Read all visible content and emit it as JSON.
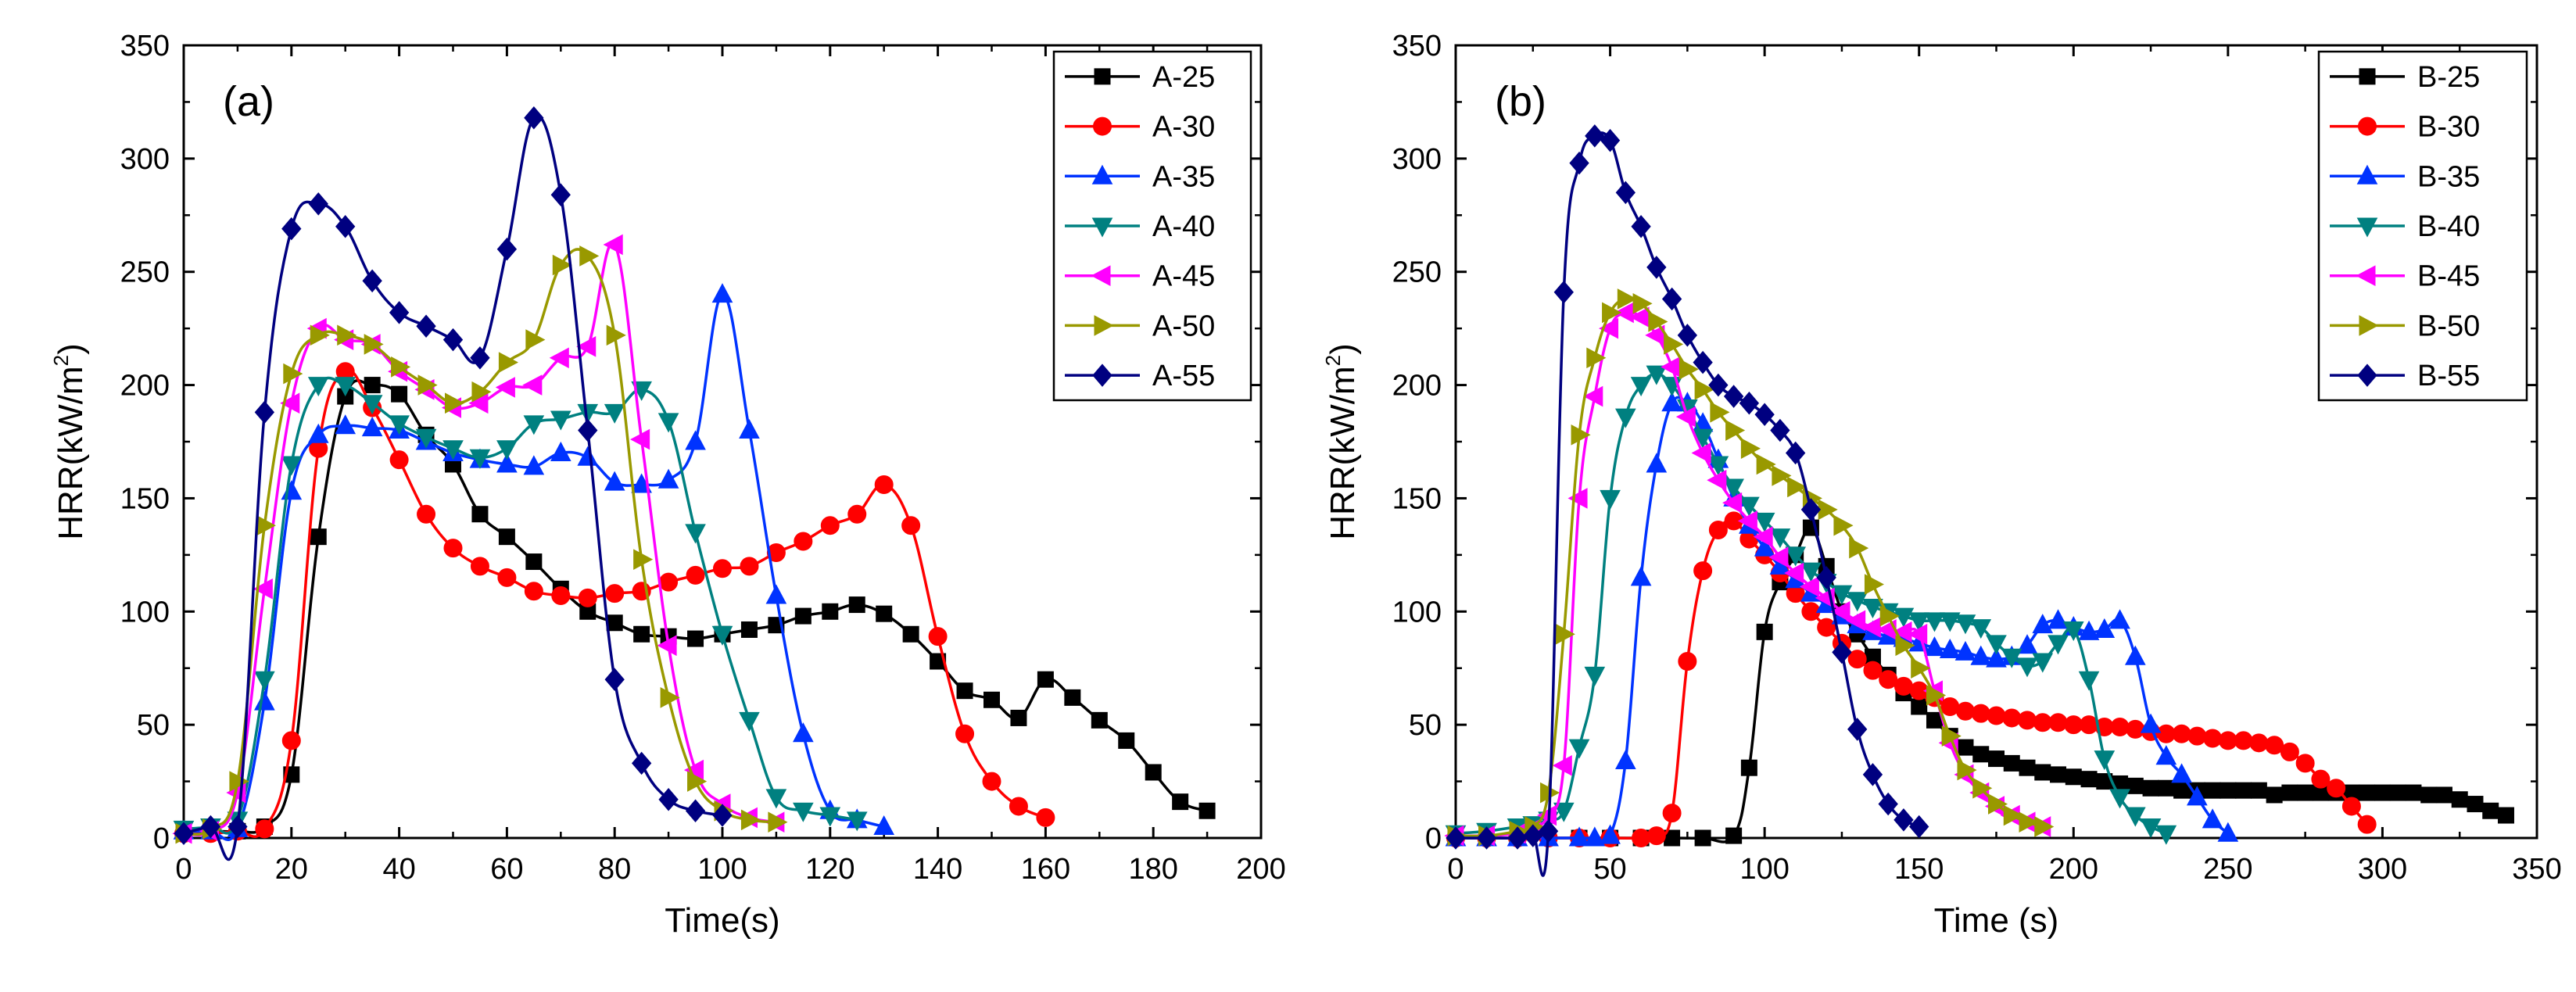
{
  "chart_data": [
    {
      "type": "line",
      "panel_label": "(a)",
      "xlabel": "Time(s)",
      "ylabel_pre": "HRR(kW/m",
      "ylabel_sup": "2",
      "ylabel_post": ")",
      "xlim": [
        0,
        200
      ],
      "ylim": [
        0,
        350
      ],
      "xticks": [
        0,
        20,
        40,
        60,
        80,
        100,
        120,
        140,
        160,
        180,
        200
      ],
      "yticks": [
        0,
        50,
        100,
        150,
        200,
        250,
        300,
        350
      ],
      "legend_position": "top-right",
      "series": [
        {
          "name": "A-25",
          "color": "#000000",
          "marker": "square",
          "x": [
            0,
            5,
            10,
            15,
            20,
            25,
            30,
            35,
            40,
            45,
            50,
            55,
            60,
            65,
            70,
            75,
            80,
            85,
            90,
            95,
            100,
            105,
            110,
            115,
            120,
            125,
            130,
            135,
            140,
            145,
            150,
            155,
            160,
            165,
            170,
            175,
            180,
            185,
            190
          ],
          "y": [
            3,
            3,
            3,
            5,
            28,
            133,
            195,
            200,
            196,
            178,
            165,
            143,
            133,
            122,
            110,
            100,
            95,
            90,
            89,
            88,
            90,
            92,
            94,
            98,
            100,
            103,
            99,
            90,
            78,
            65,
            61,
            53,
            70,
            62,
            52,
            43,
            29,
            16,
            12
          ]
        },
        {
          "name": "A-30",
          "color": "#ff0000",
          "marker": "circle",
          "x": [
            0,
            5,
            10,
            15,
            20,
            25,
            30,
            35,
            40,
            45,
            50,
            55,
            60,
            65,
            70,
            75,
            80,
            85,
            90,
            95,
            100,
            105,
            110,
            115,
            120,
            125,
            130,
            135,
            140,
            145,
            150,
            155,
            160
          ],
          "y": [
            2,
            2,
            3,
            4,
            43,
            172,
            206,
            190,
            167,
            143,
            128,
            120,
            115,
            109,
            107,
            106,
            108,
            109,
            113,
            116,
            119,
            120,
            126,
            131,
            138,
            143,
            156,
            138,
            89,
            46,
            25,
            14,
            9
          ]
        },
        {
          "name": "A-35",
          "color": "#0033ff",
          "marker": "triangle-up",
          "x": [
            0,
            5,
            10,
            15,
            20,
            25,
            30,
            35,
            40,
            45,
            50,
            55,
            60,
            65,
            70,
            75,
            80,
            85,
            90,
            95,
            100,
            105,
            110,
            115,
            120,
            125,
            130
          ],
          "y": [
            3,
            3,
            4,
            60,
            153,
            178,
            182,
            181,
            180,
            175,
            170,
            167,
            165,
            164,
            170,
            168,
            157,
            156,
            158,
            175,
            240,
            180,
            107,
            46,
            12,
            8,
            5
          ]
        },
        {
          "name": "A-40",
          "color": "#008080",
          "marker": "triangle-down",
          "x": [
            0,
            5,
            10,
            15,
            20,
            25,
            30,
            35,
            40,
            45,
            50,
            55,
            60,
            65,
            70,
            75,
            80,
            85,
            90,
            95,
            100,
            105,
            110,
            115,
            120,
            125
          ],
          "y": [
            4,
            5,
            8,
            70,
            165,
            200,
            200,
            192,
            183,
            177,
            172,
            168,
            172,
            183,
            185,
            188,
            188,
            198,
            184,
            135,
            90,
            52,
            18,
            12,
            10,
            8
          ]
        },
        {
          "name": "A-45",
          "color": "#ff00ff",
          "marker": "triangle-left",
          "x": [
            0,
            5,
            10,
            15,
            20,
            25,
            30,
            35,
            40,
            45,
            50,
            55,
            60,
            65,
            70,
            75,
            80,
            85,
            90,
            95,
            100,
            105,
            110
          ],
          "y": [
            2,
            3,
            20,
            110,
            192,
            225,
            220,
            218,
            206,
            198,
            190,
            192,
            199,
            200,
            212,
            217,
            262,
            176,
            85,
            30,
            15,
            9,
            7
          ]
        },
        {
          "name": "A-50",
          "color": "#999900",
          "marker": "triangle-right",
          "x": [
            0,
            5,
            10,
            15,
            20,
            25,
            30,
            35,
            40,
            45,
            50,
            55,
            60,
            65,
            70,
            75,
            80,
            85,
            90,
            95,
            100,
            105,
            110
          ],
          "y": [
            2,
            4,
            25,
            138,
            205,
            222,
            222,
            218,
            208,
            200,
            192,
            197,
            210,
            220,
            253,
            257,
            222,
            123,
            62,
            25,
            12,
            8,
            7
          ]
        },
        {
          "name": "A-55",
          "color": "#000080",
          "marker": "diamond",
          "x": [
            0,
            5,
            10,
            15,
            20,
            25,
            30,
            35,
            40,
            45,
            50,
            55,
            60,
            65,
            70,
            75,
            80,
            85,
            90,
            95,
            100
          ],
          "y": [
            2,
            5,
            5,
            188,
            269,
            280,
            270,
            246,
            232,
            226,
            220,
            212,
            260,
            318,
            284,
            180,
            70,
            33,
            17,
            12,
            10
          ]
        }
      ]
    },
    {
      "type": "line",
      "panel_label": "(b)",
      "xlabel": "Time (s)",
      "ylabel_pre": "HRR(kW/m",
      "ylabel_sup": "2",
      "ylabel_post": ")",
      "xlim": [
        0,
        350
      ],
      "ylim": [
        0,
        350
      ],
      "xticks": [
        0,
        50,
        100,
        150,
        200,
        250,
        300,
        350
      ],
      "yticks": [
        0,
        50,
        100,
        150,
        200,
        250,
        300,
        350
      ],
      "legend_position": "top-right",
      "series": [
        {
          "name": "B-25",
          "color": "#000000",
          "marker": "square",
          "x": [
            0,
            10,
            20,
            30,
            40,
            50,
            60,
            70,
            80,
            90,
            95,
            100,
            105,
            110,
            115,
            120,
            125,
            130,
            135,
            140,
            145,
            150,
            155,
            160,
            165,
            170,
            175,
            180,
            185,
            190,
            195,
            200,
            205,
            210,
            215,
            220,
            225,
            230,
            235,
            240,
            245,
            250,
            255,
            260,
            265,
            270,
            275,
            280,
            285,
            290,
            295,
            300,
            305,
            310,
            315,
            320,
            325,
            330,
            335,
            340
          ],
          "y": [
            0,
            0,
            0,
            0,
            0,
            0,
            0,
            0,
            0,
            1,
            31,
            91,
            113,
            125,
            137,
            120,
            100,
            90,
            80,
            72,
            64,
            58,
            52,
            45,
            40,
            37,
            35,
            33,
            31,
            29,
            28,
            27,
            26,
            25,
            24,
            23,
            22,
            22,
            21,
            21,
            21,
            21,
            21,
            21,
            19,
            20,
            20,
            20,
            20,
            20,
            20,
            20,
            20,
            20,
            19,
            19,
            17,
            15,
            12,
            10
          ]
        },
        {
          "name": "B-30",
          "color": "#ff0000",
          "marker": "circle",
          "x": [
            0,
            10,
            20,
            30,
            40,
            50,
            60,
            65,
            70,
            75,
            80,
            85,
            90,
            95,
            100,
            105,
            110,
            115,
            120,
            125,
            130,
            135,
            140,
            145,
            150,
            155,
            160,
            165,
            170,
            175,
            180,
            185,
            190,
            195,
            200,
            205,
            210,
            215,
            220,
            225,
            230,
            235,
            240,
            245,
            250,
            255,
            260,
            265,
            270,
            275,
            280,
            285,
            290,
            295
          ],
          "y": [
            0,
            0,
            0,
            0,
            0,
            0,
            0,
            1,
            11,
            78,
            118,
            136,
            140,
            132,
            125,
            117,
            108,
            100,
            93,
            86,
            79,
            74,
            70,
            67,
            65,
            62,
            58,
            56,
            55,
            54,
            53,
            52,
            51,
            51,
            50,
            50,
            49,
            49,
            48,
            47,
            46,
            46,
            45,
            44,
            43,
            43,
            42,
            41,
            38,
            33,
            26,
            22,
            14,
            6
          ]
        },
        {
          "name": "B-35",
          "color": "#0033ff",
          "marker": "triangle-up",
          "x": [
            0,
            10,
            20,
            30,
            40,
            45,
            50,
            55,
            60,
            65,
            70,
            75,
            80,
            85,
            90,
            95,
            100,
            105,
            110,
            115,
            120,
            125,
            130,
            135,
            140,
            145,
            150,
            155,
            160,
            165,
            170,
            175,
            180,
            185,
            190,
            195,
            200,
            205,
            210,
            215,
            220,
            225,
            230,
            235,
            240,
            245,
            250
          ],
          "y": [
            0,
            0,
            0,
            0,
            0,
            0,
            1,
            34,
            115,
            165,
            192,
            192,
            183,
            167,
            150,
            138,
            128,
            120,
            114,
            108,
            103,
            98,
            94,
            91,
            89,
            88,
            86,
            84,
            83,
            82,
            80,
            79,
            80,
            85,
            94,
            96,
            93,
            91,
            92,
            96,
            80,
            50,
            36,
            28,
            18,
            8,
            2
          ]
        },
        {
          "name": "B-40",
          "color": "#008080",
          "marker": "triangle-down",
          "x": [
            0,
            10,
            20,
            25,
            30,
            35,
            40,
            45,
            50,
            55,
            60,
            65,
            70,
            75,
            80,
            85,
            90,
            95,
            100,
            105,
            110,
            115,
            120,
            125,
            130,
            135,
            140,
            145,
            150,
            155,
            160,
            165,
            170,
            175,
            180,
            185,
            190,
            195,
            200,
            205,
            210,
            215,
            220,
            225,
            230
          ],
          "y": [
            2,
            3,
            5,
            6,
            8,
            12,
            40,
            72,
            150,
            186,
            200,
            205,
            200,
            190,
            177,
            165,
            155,
            147,
            140,
            133,
            125,
            118,
            113,
            108,
            105,
            102,
            100,
            98,
            96,
            96,
            96,
            95,
            93,
            86,
            80,
            76,
            78,
            86,
            92,
            70,
            35,
            18,
            10,
            5,
            2
          ]
        },
        {
          "name": "B-45",
          "color": "#ff00ff",
          "marker": "triangle-left",
          "x": [
            0,
            10,
            20,
            25,
            30,
            35,
            40,
            45,
            50,
            55,
            60,
            65,
            70,
            75,
            80,
            85,
            90,
            95,
            100,
            105,
            110,
            115,
            120,
            125,
            130,
            135,
            140,
            145,
            150,
            155,
            160,
            165,
            170,
            175,
            180,
            185,
            190
          ],
          "y": [
            1,
            1,
            2,
            4,
            10,
            32,
            150,
            195,
            225,
            232,
            230,
            222,
            208,
            186,
            170,
            158,
            148,
            140,
            133,
            124,
            117,
            111,
            106,
            100,
            96,
            93,
            92,
            91,
            90,
            65,
            42,
            28,
            20,
            14,
            10,
            7,
            5
          ]
        },
        {
          "name": "B-50",
          "color": "#999900",
          "marker": "triangle-right",
          "x": [
            0,
            10,
            20,
            25,
            30,
            35,
            40,
            45,
            50,
            55,
            60,
            65,
            70,
            75,
            80,
            85,
            90,
            95,
            100,
            105,
            110,
            115,
            120,
            125,
            130,
            135,
            140,
            145,
            150,
            155,
            160,
            165,
            170,
            175,
            180,
            185,
            190
          ],
          "y": [
            1,
            1,
            3,
            5,
            20,
            90,
            178,
            212,
            232,
            238,
            236,
            228,
            218,
            207,
            198,
            188,
            180,
            172,
            165,
            160,
            155,
            150,
            145,
            138,
            128,
            112,
            98,
            85,
            75,
            63,
            45,
            30,
            22,
            15,
            10,
            7,
            5
          ]
        },
        {
          "name": "B-55",
          "color": "#000080",
          "marker": "diamond",
          "x": [
            0,
            10,
            20,
            25,
            30,
            35,
            40,
            45,
            50,
            55,
            60,
            65,
            70,
            75,
            80,
            85,
            90,
            95,
            100,
            105,
            110,
            115,
            120,
            125,
            130,
            135,
            140,
            145,
            150
          ],
          "y": [
            0,
            0,
            0,
            1,
            3,
            241,
            298,
            310,
            308,
            285,
            270,
            252,
            238,
            222,
            210,
            200,
            195,
            192,
            187,
            180,
            170,
            145,
            115,
            82,
            48,
            28,
            15,
            8,
            5
          ]
        }
      ]
    }
  ]
}
